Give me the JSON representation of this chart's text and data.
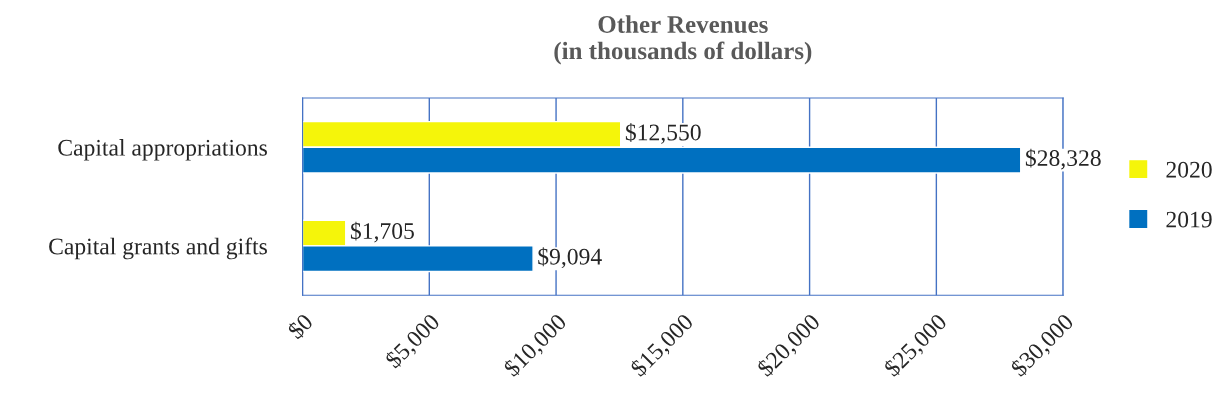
{
  "chart_data": {
    "type": "bar",
    "orientation": "horizontal",
    "title": "Other Revenues\n(in thousands of dollars)",
    "categories": [
      "Capital appropriations",
      "Capital grants and gifts"
    ],
    "series": [
      {
        "name": "2020",
        "color": "#f5f50a",
        "values": [
          12550,
          1705
        ],
        "value_labels": [
          "$12,550",
          "$1,705"
        ]
      },
      {
        "name": "2019",
        "color": "#0070c0",
        "values": [
          28328,
          9094
        ],
        "value_labels": [
          "$28,328",
          "$9,094"
        ]
      }
    ],
    "xlim": [
      0,
      30000
    ],
    "xticks": [
      {
        "value": 0,
        "label": "$0"
      },
      {
        "value": 5000,
        "label": "$5,000"
      },
      {
        "value": 10000,
        "label": "$10,000"
      },
      {
        "value": 15000,
        "label": "$15,000"
      },
      {
        "value": 20000,
        "label": "$20,000"
      },
      {
        "value": 25000,
        "label": "$25,000"
      },
      {
        "value": 30000,
        "label": "$30,000"
      }
    ],
    "grid": "x",
    "legend": "right"
  }
}
